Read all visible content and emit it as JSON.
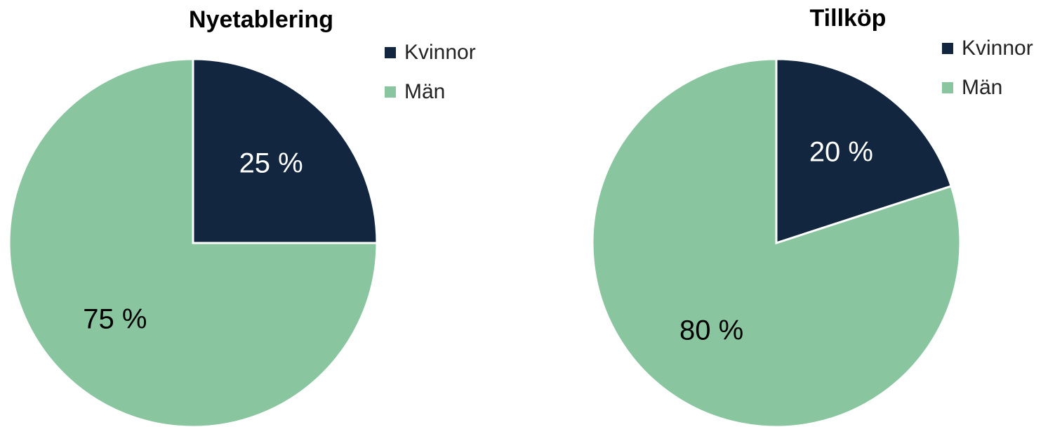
{
  "chart_data": [
    {
      "type": "pie",
      "title": "Nyetablering",
      "categories": [
        "Kvinnor",
        "Män"
      ],
      "values": [
        25,
        75
      ],
      "value_labels": [
        "25 %",
        "75 %"
      ],
      "colors": [
        "#13263f",
        "#89c6a0"
      ]
    },
    {
      "type": "pie",
      "title": "Tillköp",
      "categories": [
        "Kvinnor",
        "Män"
      ],
      "values": [
        20,
        80
      ],
      "value_labels": [
        "20 %",
        "80 %"
      ],
      "colors": [
        "#13263f",
        "#89c6a0"
      ]
    }
  ]
}
